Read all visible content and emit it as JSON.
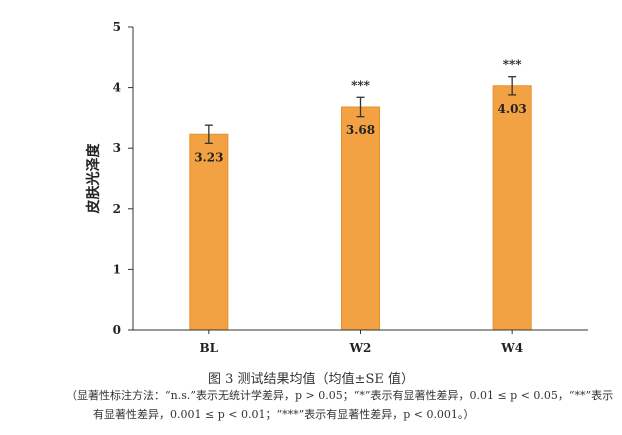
{
  "chart_data": {
    "type": "bar",
    "categories": [
      "BL",
      "W2",
      "W4"
    ],
    "values": [
      3.23,
      3.68,
      4.03
    ],
    "errors": [
      0.15,
      0.16,
      0.15
    ],
    "value_labels": [
      "3.23",
      "3.68",
      "4.03"
    ],
    "significance": [
      "",
      "***",
      "***"
    ],
    "ylabel": "皮肤光泽度",
    "ylim": [
      0,
      5
    ],
    "yticks": [
      "0",
      "1",
      "2",
      "3",
      "4",
      "5"
    ],
    "grid": false,
    "bar_color": "#f2a243",
    "bar_edge_color": "#e8902a"
  },
  "caption": "图 3    测试结果均值（均值±SE 值）",
  "note_line1": "（显著性标注方法：“n.s.”表示无统计学差异，p > 0.05；“*”表示有显著性差异，0.01 ≤ p < 0.05，“**”表示",
  "note_line2": "有显著性差异，0.001 ≤ p < 0.01；“***”表示有显著性差异，p < 0.001。）"
}
